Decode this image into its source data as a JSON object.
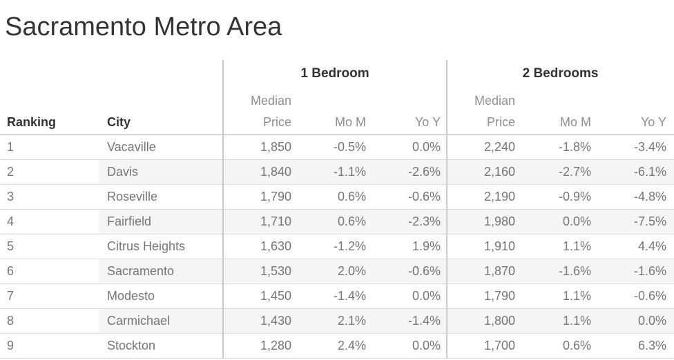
{
  "title": "Sacramento Metro Area",
  "header": {
    "ranking": "Ranking",
    "city": "City",
    "group1": "1 Bedroom",
    "group2": "2 Bedrooms",
    "median": "Median",
    "price": "Price",
    "mom": "Mo M",
    "yoy": "Yo Y"
  },
  "colors": {
    "title_text": "#343434",
    "header_text": "#333333",
    "muted_header_text": "#8f8f8f",
    "data_text": "#767676",
    "row_band": "#f5f5f5",
    "row_line": "#d9d9d9",
    "header_line": "#b4b4b4",
    "group_divider": "#c9c9c9"
  },
  "chart_data": {
    "type": "table",
    "title": "Sacramento Metro Area",
    "column_groups": [
      "",
      "1 Bedroom",
      "2 Bedrooms"
    ],
    "columns": [
      "Ranking",
      "City",
      "1BR Median Price",
      "1BR Mo M",
      "1BR Yo Y",
      "2BR Median Price",
      "2BR Mo M",
      "2BR Yo Y"
    ],
    "rows": [
      [
        "1",
        "Vacaville",
        "1,850",
        "-0.5%",
        "0.0%",
        "2,240",
        "-1.8%",
        "-3.4%"
      ],
      [
        "2",
        "Davis",
        "1,840",
        "-1.1%",
        "-2.6%",
        "2,160",
        "-2.7%",
        "-6.1%"
      ],
      [
        "3",
        "Roseville",
        "1,790",
        "0.6%",
        "-0.6%",
        "2,190",
        "-0.9%",
        "-4.8%"
      ],
      [
        "4",
        "Fairfield",
        "1,710",
        "0.6%",
        "-2.3%",
        "1,980",
        "0.0%",
        "-7.5%"
      ],
      [
        "5",
        "Citrus Heights",
        "1,630",
        "-1.2%",
        "1.9%",
        "1,910",
        "1.1%",
        "4.4%"
      ],
      [
        "6",
        "Sacramento",
        "1,530",
        "2.0%",
        "-0.6%",
        "1,870",
        "-1.6%",
        "-1.6%"
      ],
      [
        "7",
        "Modesto",
        "1,450",
        "-1.4%",
        "0.0%",
        "1,790",
        "1.1%",
        "-0.6%"
      ],
      [
        "8",
        "Carmichael",
        "1,430",
        "2.1%",
        "-1.4%",
        "1,800",
        "1.1%",
        "0.0%"
      ],
      [
        "9",
        "Stockton",
        "1,280",
        "2.4%",
        "0.0%",
        "1,700",
        "0.6%",
        "6.3%"
      ]
    ]
  }
}
